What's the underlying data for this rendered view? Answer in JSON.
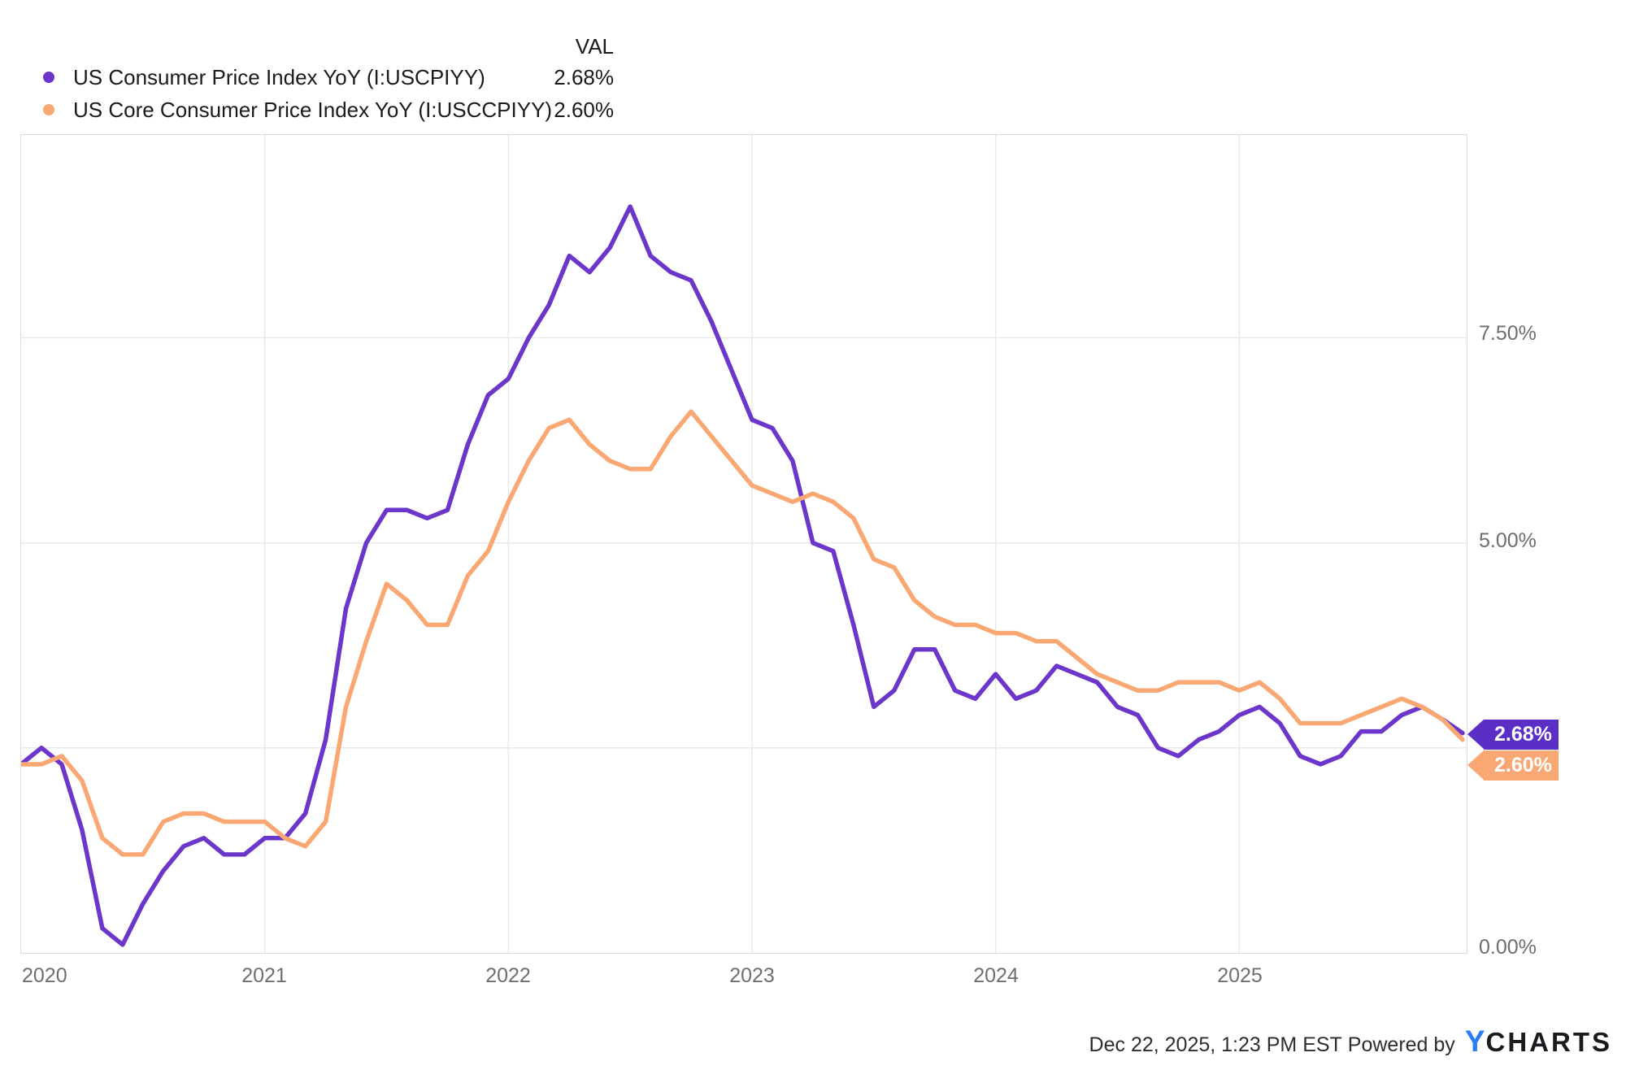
{
  "legend": {
    "val_header": "VAL",
    "series": [
      {
        "label": "US Consumer Price Index YoY (I:USCPIYY)",
        "value": "2.68%",
        "color": "#6B36C9"
      },
      {
        "label": "US Core Consumer Price Index YoY (I:USCCPIYY)",
        "value": "2.60%",
        "color": "#F9A873"
      }
    ]
  },
  "chart_data": {
    "type": "line",
    "title": "",
    "x_range": [
      "Dec 2019",
      "Nov 2025"
    ],
    "frequency": "monthly",
    "x_tick_labels": [
      "2020",
      "2021",
      "2022",
      "2023",
      "2024",
      "2025"
    ],
    "x_gridline_month_indices": [
      12,
      24,
      36,
      48,
      60
    ],
    "y_tick_labels": [
      "0.00%",
      "5.00%",
      "7.50%"
    ],
    "y_gridlines": [
      2.5,
      5.0,
      7.5
    ],
    "ylim": [
      0,
      9.97
    ],
    "grid": true,
    "legend_position": "top-left",
    "series": [
      {
        "name": "US Consumer Price Index YoY (I:USCPIYY)",
        "color": "#6B36C9",
        "end_label": "2.68%",
        "values": [
          2.3,
          2.5,
          2.3,
          1.5,
          0.3,
          0.1,
          0.6,
          1.0,
          1.3,
          1.4,
          1.2,
          1.2,
          1.4,
          1.4,
          1.7,
          2.6,
          4.2,
          5.0,
          5.4,
          5.4,
          5.3,
          5.4,
          6.2,
          6.8,
          7.0,
          7.5,
          7.9,
          8.5,
          8.3,
          8.6,
          9.1,
          8.5,
          8.3,
          8.2,
          7.7,
          7.1,
          6.5,
          6.4,
          6.0,
          5.0,
          4.9,
          4.0,
          3.0,
          3.2,
          3.7,
          3.7,
          3.2,
          3.1,
          3.4,
          3.1,
          3.2,
          3.5,
          3.4,
          3.3,
          3.0,
          2.9,
          2.5,
          2.4,
          2.6,
          2.7,
          2.9,
          3.0,
          2.8,
          2.4,
          2.3,
          2.4,
          2.7,
          2.7,
          2.9,
          3.0,
          2.85,
          2.68
        ]
      },
      {
        "name": "US Core Consumer Price Index YoY (I:USCCPIYY)",
        "color": "#F9A873",
        "end_label": "2.60%",
        "values": [
          2.3,
          2.3,
          2.4,
          2.1,
          1.4,
          1.2,
          1.2,
          1.6,
          1.7,
          1.7,
          1.6,
          1.6,
          1.6,
          1.4,
          1.3,
          1.6,
          3.0,
          3.8,
          4.5,
          4.3,
          4.0,
          4.0,
          4.6,
          4.9,
          5.5,
          6.0,
          6.4,
          6.5,
          6.2,
          6.0,
          5.9,
          5.9,
          6.3,
          6.6,
          6.3,
          6.0,
          5.7,
          5.6,
          5.5,
          5.6,
          5.5,
          5.3,
          4.8,
          4.7,
          4.3,
          4.1,
          4.0,
          4.0,
          3.9,
          3.9,
          3.8,
          3.8,
          3.6,
          3.4,
          3.3,
          3.2,
          3.2,
          3.3,
          3.3,
          3.3,
          3.2,
          3.3,
          3.1,
          2.8,
          2.8,
          2.8,
          2.9,
          3.0,
          3.1,
          3.0,
          2.85,
          2.6
        ]
      }
    ]
  },
  "tags": [
    {
      "label": "2.68%",
      "color": "#5B2EC6"
    },
    {
      "label": "2.60%",
      "color": "#F9A873"
    }
  ],
  "footer": {
    "timestamp": "Dec 22, 2025, 1:23 PM EST",
    "powered_by": "Powered by",
    "brand_y": "Y",
    "brand_rest": "CHARTS"
  }
}
